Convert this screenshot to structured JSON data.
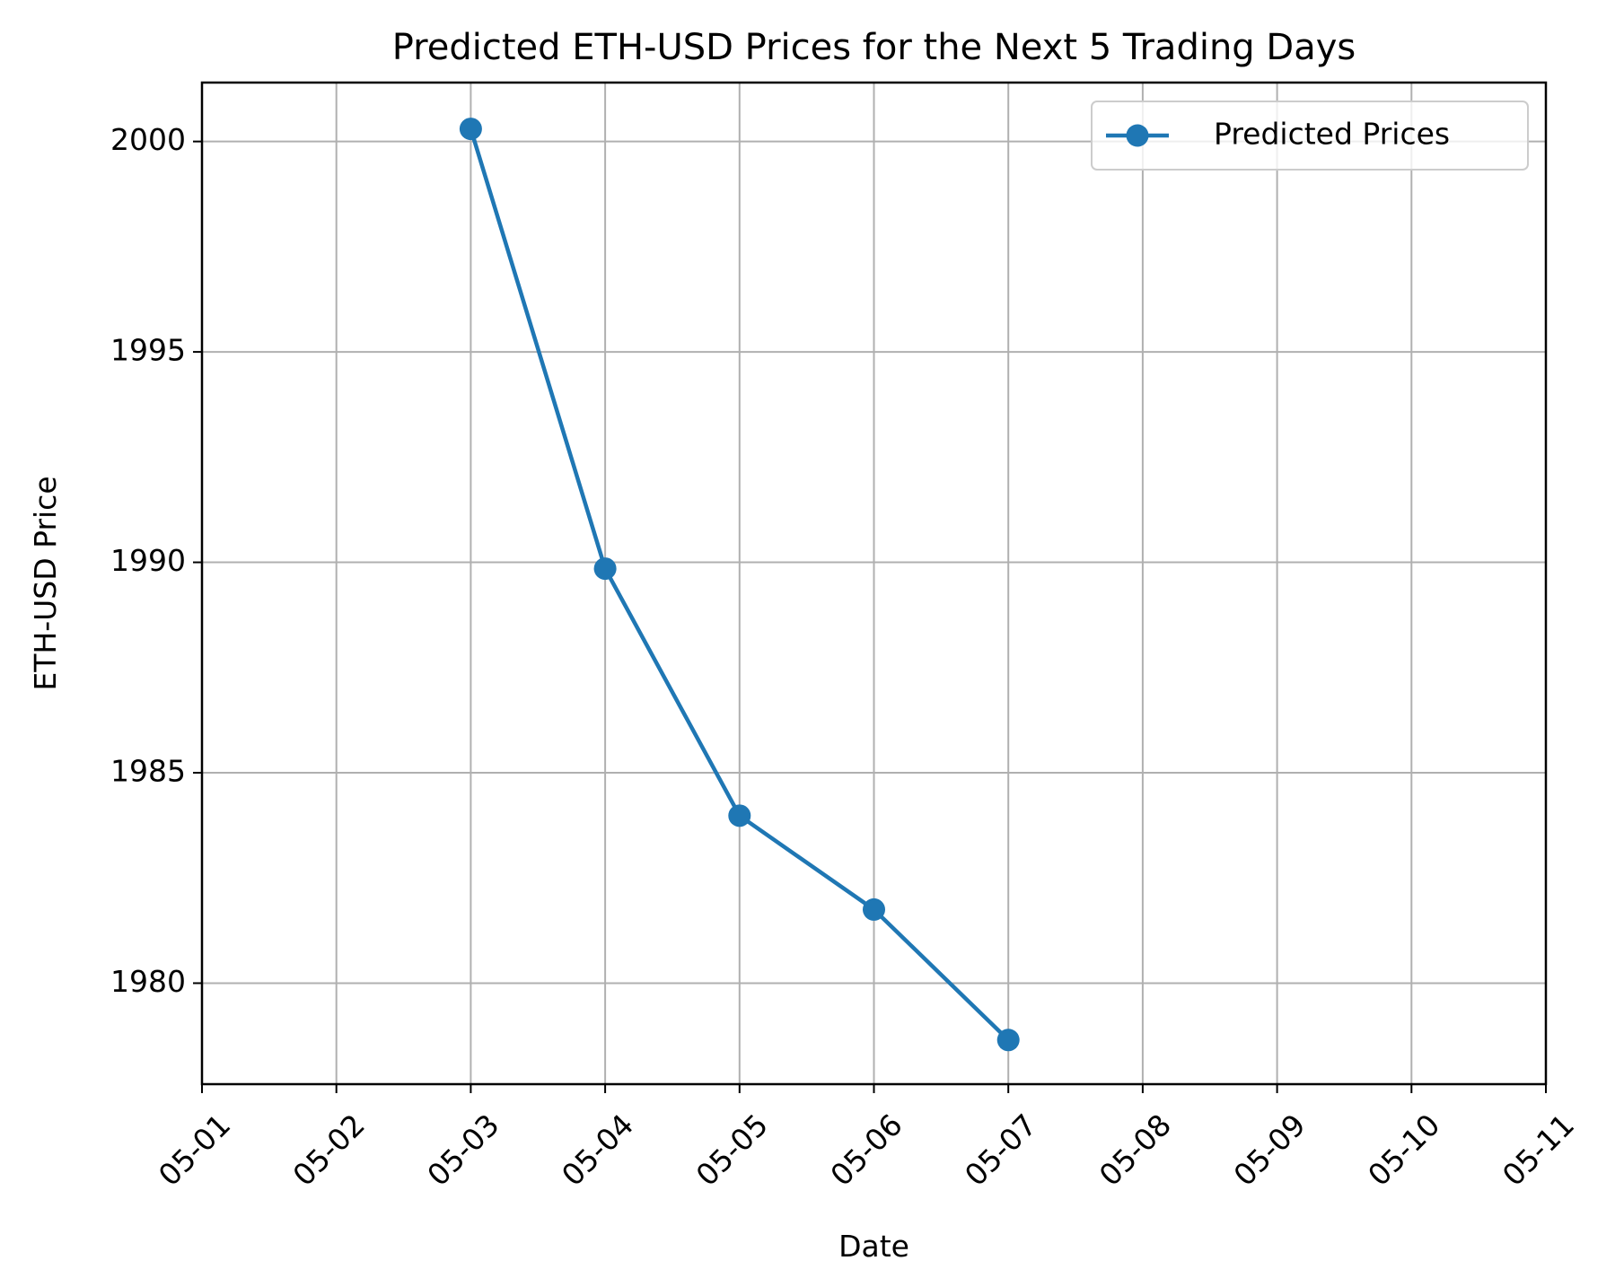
{
  "chart_data": {
    "type": "line",
    "title": "Predicted ETH-USD Prices for the Next 5 Trading Days",
    "xlabel": "Date",
    "ylabel": "ETH-USD Price",
    "x_tick_labels": [
      "05-01",
      "05-02",
      "05-03",
      "05-04",
      "05-05",
      "05-06",
      "05-07",
      "05-08",
      "05-09",
      "05-10",
      "05-11"
    ],
    "y_ticks": [
      1980,
      1985,
      1990,
      1995,
      2000
    ],
    "ylim": [
      1977.6,
      2001.4
    ],
    "grid": true,
    "legend_position": "top-right",
    "series": [
      {
        "name": "Predicted Prices",
        "color": "#1f77b4",
        "marker": "circle",
        "x": [
          "05-03",
          "05-04",
          "05-05",
          "05-06",
          "05-07"
        ],
        "values": [
          2000.3,
          1989.85,
          1983.98,
          1981.75,
          1978.65
        ]
      }
    ]
  }
}
